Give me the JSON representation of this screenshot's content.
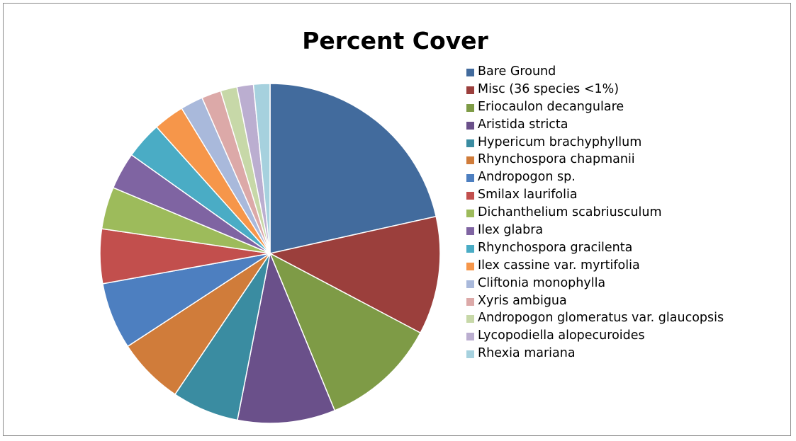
{
  "chart_data": {
    "type": "pie",
    "title": "Percent Cover",
    "legend_position": "right",
    "start_angle_deg": 0,
    "direction": "clockwise",
    "slices": [
      {
        "label": "Bare Ground",
        "value": 22.0,
        "color": "#426b9d"
      },
      {
        "label": "Misc (36 species <1%)",
        "value": 11.5,
        "color": "#9b3f3c"
      },
      {
        "label": "Eriocaulon decangulare",
        "value": 11.3,
        "color": "#7e9b46"
      },
      {
        "label": "Aristida stricta",
        "value": 9.5,
        "color": "#6a508a"
      },
      {
        "label": "Hypericum brachyphyllum",
        "value": 6.5,
        "color": "#3a8ca1"
      },
      {
        "label": "Rhynchospora chapmanii",
        "value": 6.5,
        "color": "#d07c3a"
      },
      {
        "label": "Andropogon sp.",
        "value": 6.5,
        "color": "#4d7fc0"
      },
      {
        "label": "Smilax laurifolia",
        "value": 5.3,
        "color": "#c24f4d"
      },
      {
        "label": "Dichanthelium scabriusculum",
        "value": 4.1,
        "color": "#9dbb5b"
      },
      {
        "label": "Ilex glabra",
        "value": 3.6,
        "color": "#7f64a2"
      },
      {
        "label": "Rhynchospora gracilenta",
        "value": 3.6,
        "color": "#4aacc5"
      },
      {
        "label": "Ilex cassine var. myrtifolia",
        "value": 3.0,
        "color": "#f6964a"
      },
      {
        "label": "Cliftonia monophylla",
        "value": 2.2,
        "color": "#a9b9db"
      },
      {
        "label": "Xyris ambigua",
        "value": 1.9,
        "color": "#dca9a8"
      },
      {
        "label": "Andropogon glomeratus var. glaucopsis",
        "value": 1.6,
        "color": "#c7d8a8"
      },
      {
        "label": "Lycopodiella alopecuroides",
        "value": 1.6,
        "color": "#bbaed0"
      },
      {
        "label": "Rhexia mariana",
        "value": 1.6,
        "color": "#a6d1de"
      }
    ]
  }
}
